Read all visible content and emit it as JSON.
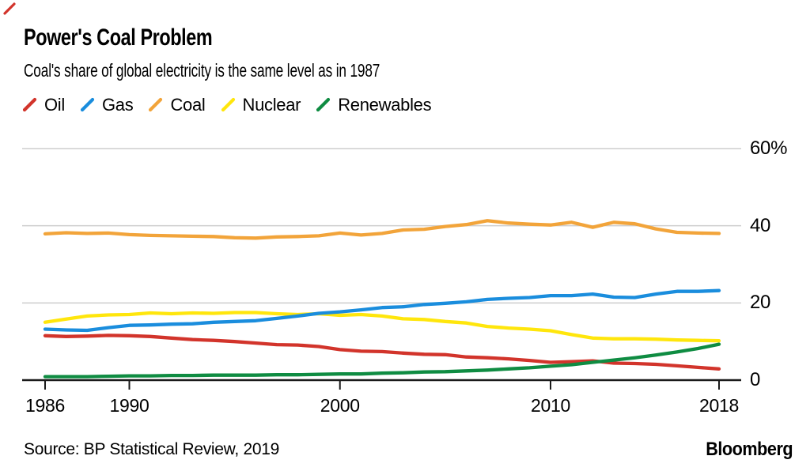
{
  "chart_data": {
    "type": "line",
    "title": "Power's Coal Problem",
    "subtitle": "Coal's share of global electricity is the same level as in 1987",
    "xlabel": "",
    "ylabel": "",
    "unit": "%",
    "ylim": [
      0,
      60
    ],
    "grid": "horizontal",
    "legend_position": "top",
    "x": [
      1986,
      1987,
      1988,
      1989,
      1990,
      1991,
      1992,
      1993,
      1994,
      1995,
      1996,
      1997,
      1998,
      1999,
      2000,
      2001,
      2002,
      2003,
      2004,
      2005,
      2006,
      2007,
      2008,
      2009,
      2010,
      2011,
      2012,
      2013,
      2014,
      2015,
      2016,
      2017,
      2018
    ],
    "yticks": [
      {
        "value": 60,
        "label": "60%"
      },
      {
        "value": 40,
        "label": "40"
      },
      {
        "value": 20,
        "label": "20"
      },
      {
        "value": 0,
        "label": "0"
      }
    ],
    "xticks": [
      {
        "value": 1986,
        "label": "1986"
      },
      {
        "value": 1990,
        "label": "1990"
      },
      {
        "value": 2000,
        "label": "2000"
      },
      {
        "value": 2010,
        "label": "2010"
      },
      {
        "value": 2018,
        "label": "2018"
      }
    ],
    "series": [
      {
        "name": "Oil",
        "color": "#d2342b",
        "values": [
          11.5,
          11.3,
          11.4,
          11.6,
          11.5,
          11.3,
          10.9,
          10.5,
          10.3,
          10.0,
          9.6,
          9.2,
          9.1,
          8.7,
          7.9,
          7.5,
          7.4,
          7.0,
          6.7,
          6.6,
          6.0,
          5.8,
          5.5,
          5.1,
          4.6,
          4.8,
          5.0,
          4.4,
          4.3,
          4.1,
          3.7,
          3.3,
          2.9
        ]
      },
      {
        "name": "Gas",
        "color": "#1a8ddd",
        "values": [
          13.2,
          13.0,
          12.9,
          13.6,
          14.2,
          14.3,
          14.5,
          14.6,
          15.0,
          15.2,
          15.4,
          16.0,
          16.6,
          17.3,
          17.7,
          18.2,
          18.8,
          19.0,
          19.6,
          19.9,
          20.3,
          20.9,
          21.2,
          21.4,
          21.9,
          21.9,
          22.3,
          21.5,
          21.4,
          22.3,
          23.0,
          23.0,
          23.2
        ]
      },
      {
        "name": "Coal",
        "color": "#f2a43a",
        "values": [
          37.9,
          38.2,
          38.0,
          38.1,
          37.7,
          37.5,
          37.4,
          37.3,
          37.2,
          36.9,
          36.8,
          37.1,
          37.2,
          37.4,
          38.1,
          37.6,
          38.0,
          38.9,
          39.1,
          39.8,
          40.3,
          41.3,
          40.7,
          40.4,
          40.2,
          40.9,
          39.6,
          40.9,
          40.5,
          39.2,
          38.3,
          38.1,
          38.0
        ]
      },
      {
        "name": "Nuclear",
        "color": "#ffe60c",
        "values": [
          15.0,
          15.8,
          16.6,
          16.9,
          17.0,
          17.4,
          17.2,
          17.4,
          17.3,
          17.5,
          17.5,
          17.2,
          17.0,
          17.2,
          16.8,
          17.0,
          16.6,
          15.9,
          15.7,
          15.2,
          14.8,
          13.9,
          13.5,
          13.2,
          12.8,
          11.8,
          10.9,
          10.7,
          10.7,
          10.6,
          10.4,
          10.3,
          10.2
        ]
      },
      {
        "name": "Renewables",
        "color": "#0f8c42",
        "values": [
          0.9,
          0.9,
          0.9,
          1.0,
          1.1,
          1.1,
          1.2,
          1.2,
          1.3,
          1.3,
          1.3,
          1.4,
          1.4,
          1.5,
          1.6,
          1.6,
          1.8,
          1.9,
          2.1,
          2.2,
          2.4,
          2.6,
          2.9,
          3.2,
          3.6,
          4.0,
          4.6,
          5.2,
          5.8,
          6.5,
          7.3,
          8.2,
          9.3
        ]
      }
    ]
  },
  "footer": {
    "source": "Source: BP Statistical Review, 2019",
    "brand": "Bloomberg"
  },
  "colors": {
    "background": "#ffffff",
    "text": "#000000",
    "grid": "#cdcdcd",
    "axis": "#1a1a1a",
    "corner_mark": "#d2342b"
  }
}
